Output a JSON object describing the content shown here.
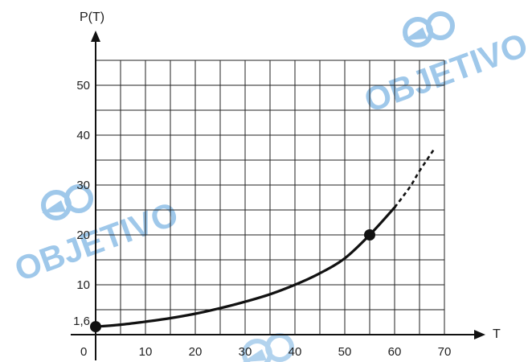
{
  "chart_data": {
    "type": "line",
    "xlabel": "T",
    "ylabel": "P(T)",
    "xlim": [
      0,
      72
    ],
    "ylim": [
      0,
      54
    ],
    "x_ticks": [
      "0",
      "10",
      "20",
      "30",
      "40",
      "50",
      "60",
      "70"
    ],
    "y_ticks": [
      "10",
      "20",
      "30",
      "40",
      "50"
    ],
    "y_special_label": "1,6",
    "grid": "on",
    "series": [
      {
        "style": "solid",
        "points": [
          [
            0,
            1.6
          ],
          [
            5,
            2.0
          ],
          [
            10,
            2.6
          ],
          [
            15,
            3.3
          ],
          [
            20,
            4.2
          ],
          [
            25,
            5.3
          ],
          [
            30,
            6.6
          ],
          [
            35,
            8.1
          ],
          [
            40,
            10.0
          ],
          [
            45,
            12.3
          ],
          [
            50,
            15.3
          ],
          [
            55,
            20.0
          ],
          [
            60,
            25.5
          ]
        ]
      },
      {
        "style": "dashed",
        "points": [
          [
            60,
            25.5
          ],
          [
            63,
            29.5
          ],
          [
            65,
            32.8
          ],
          [
            68,
            37.3
          ]
        ]
      }
    ],
    "highlighted_points": [
      [
        0,
        1.6
      ],
      [
        55,
        20
      ]
    ]
  },
  "watermark": {
    "text": "OBJETIVO",
    "color": "#7fb6e4"
  }
}
